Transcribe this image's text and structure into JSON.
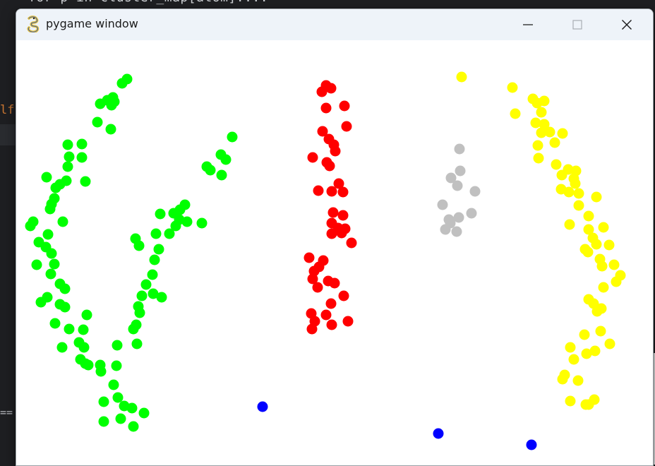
{
  "background": {
    "code_line_top": "for p in cluster_map[atom]:...",
    "gutter_text": "lf",
    "gutter_eq": "=="
  },
  "window": {
    "title": "pygame window",
    "icon": "pygame-snake-icon",
    "controls": {
      "minimize": "minimize-icon",
      "maximize": "maximize-icon",
      "close": "close-icon"
    }
  },
  "colors": {
    "titlebar": "#eef3f9",
    "canvas": "#ffffff",
    "green": "#00ff00",
    "red": "#ff0000",
    "yellow": "#ffff00",
    "gray": "#c0c0c0",
    "blue": "#0000ff"
  },
  "clusters": [
    {
      "name": "green",
      "color": "#00ff00",
      "points": [
        [
          180,
          112
        ],
        [
          173,
          118
        ],
        [
          160,
          138
        ],
        [
          152,
          142
        ],
        [
          142,
          147
        ],
        [
          158,
          149
        ],
        [
          162,
          144
        ],
        [
          138,
          173
        ],
        [
          157,
          183
        ],
        [
          116,
          204
        ],
        [
          96,
          205
        ],
        [
          98,
          222
        ],
        [
          116,
          223
        ],
        [
          96,
          236
        ],
        [
          329,
          194
        ],
        [
          313,
          219
        ],
        [
          320,
          226
        ],
        [
          293,
          236
        ],
        [
          298,
          241
        ],
        [
          314,
          248
        ],
        [
          66,
          251
        ],
        [
          94,
          256
        ],
        [
          85,
          261
        ],
        [
          79,
          266
        ],
        [
          121,
          257
        ],
        [
          77,
          281
        ],
        [
          73,
          289
        ],
        [
          71,
          296
        ],
        [
          262,
          290
        ],
        [
          255,
          297
        ],
        [
          246,
          302
        ],
        [
          227,
          303
        ],
        [
          254,
          311
        ],
        [
          265,
          314
        ],
        [
          249,
          320
        ],
        [
          286,
          316
        ],
        [
          47,
          314
        ],
        [
          43,
          320
        ],
        [
          89,
          314
        ],
        [
          68,
          332
        ],
        [
          240,
          331
        ],
        [
          221,
          331
        ],
        [
          55,
          343
        ],
        [
          65,
          350
        ],
        [
          192,
          338
        ],
        [
          197,
          348
        ],
        [
          225,
          353
        ],
        [
          73,
          359
        ],
        [
          52,
          375
        ],
        [
          219,
          368
        ],
        [
          77,
          374
        ],
        [
          72,
          388
        ],
        [
          216,
          389
        ],
        [
          85,
          402
        ],
        [
          92,
          409
        ],
        [
          207,
          403
        ],
        [
          67,
          421
        ],
        [
          58,
          428
        ],
        [
          217,
          416
        ],
        [
          229,
          421
        ],
        [
          201,
          419
        ],
        [
          85,
          431
        ],
        [
          92,
          435
        ],
        [
          196,
          434
        ],
        [
          198,
          443
        ],
        [
          123,
          446
        ],
        [
          193,
          460
        ],
        [
          189,
          466
        ],
        [
          78,
          458
        ],
        [
          98,
          466
        ],
        [
          118,
          467
        ],
        [
          112,
          485
        ],
        [
          119,
          492
        ],
        [
          88,
          492
        ],
        [
          194,
          487
        ],
        [
          166,
          489
        ],
        [
          114,
          509
        ],
        [
          121,
          515
        ],
        [
          125,
          517
        ],
        [
          142,
          517
        ],
        [
          143,
          526
        ],
        [
          165,
          518
        ],
        [
          161,
          545
        ],
        [
          167,
          563
        ],
        [
          147,
          569
        ],
        [
          176,
          575
        ],
        [
          187,
          578
        ],
        [
          204,
          585
        ],
        [
          171,
          593
        ],
        [
          147,
          597
        ],
        [
          189,
          604
        ]
      ]
    },
    {
      "name": "red",
      "color": "#ff0000",
      "points": [
        [
          462,
          121
        ],
        [
          469,
          125
        ],
        [
          456,
          130
        ],
        [
          462,
          153
        ],
        [
          488,
          150
        ],
        [
          491,
          179
        ],
        [
          457,
          186
        ],
        [
          466,
          197
        ],
        [
          473,
          205
        ],
        [
          475,
          214
        ],
        [
          443,
          223
        ],
        [
          463,
          230
        ],
        [
          467,
          235
        ],
        [
          480,
          260
        ],
        [
          451,
          270
        ],
        [
          470,
          271
        ],
        [
          486,
          272
        ],
        [
          472,
          301
        ],
        [
          486,
          305
        ],
        [
          470,
          316
        ],
        [
          479,
          323
        ],
        [
          489,
          324
        ],
        [
          470,
          331
        ],
        [
          484,
          330
        ],
        [
          498,
          344
        ],
        [
          438,
          365
        ],
        [
          458,
          369
        ],
        [
          452,
          378
        ],
        [
          445,
          384
        ],
        [
          443,
          395
        ],
        [
          465,
          398
        ],
        [
          474,
          401
        ],
        [
          450,
          407
        ],
        [
          487,
          419
        ],
        [
          469,
          430
        ],
        [
          441,
          444
        ],
        [
          462,
          446
        ],
        [
          446,
          455
        ],
        [
          442,
          466
        ],
        [
          470,
          460
        ],
        [
          493,
          455
        ]
      ]
    },
    {
      "name": "gray",
      "color": "#c0c0c0",
      "points": [
        [
          651,
          211
        ],
        [
          652,
          242
        ],
        [
          639,
          252
        ],
        [
          648,
          263
        ],
        [
          673,
          271
        ],
        [
          627,
          290
        ],
        [
          668,
          302
        ],
        [
          650,
          308
        ],
        [
          636,
          311
        ],
        [
          638,
          316
        ],
        [
          631,
          325
        ],
        [
          647,
          328
        ]
      ]
    },
    {
      "name": "yellow",
      "color": "#ffff00",
      "points": [
        [
          654,
          109
        ],
        [
          726,
          124
        ],
        [
          755,
          140
        ],
        [
          761,
          146
        ],
        [
          771,
          143
        ],
        [
          767,
          159
        ],
        [
          730,
          161
        ],
        [
          759,
          174
        ],
        [
          771,
          176
        ],
        [
          767,
          188
        ],
        [
          779,
          187
        ],
        [
          797,
          189
        ],
        [
          786,
          202
        ],
        [
          762,
          206
        ],
        [
          763,
          224
        ],
        [
          788,
          233
        ],
        [
          805,
          240
        ],
        [
          816,
          242
        ],
        [
          796,
          248
        ],
        [
          813,
          253
        ],
        [
          815,
          260
        ],
        [
          795,
          268
        ],
        [
          806,
          272
        ],
        [
          820,
          274
        ],
        [
          845,
          279
        ],
        [
          820,
          291
        ],
        [
          834,
          306
        ],
        [
          807,
          318
        ],
        [
          834,
          325
        ],
        [
          855,
          322
        ],
        [
          840,
          337
        ],
        [
          845,
          346
        ],
        [
          829,
          353
        ],
        [
          863,
          347
        ],
        [
          833,
          357
        ],
        [
          850,
          367
        ],
        [
          870,
          375
        ],
        [
          853,
          377
        ],
        [
          879,
          390
        ],
        [
          873,
          399
        ],
        [
          855,
          407
        ],
        [
          834,
          424
        ],
        [
          841,
          430
        ],
        [
          852,
          437
        ],
        [
          846,
          441
        ],
        [
          851,
          469
        ],
        [
          828,
          474
        ],
        [
          864,
          487
        ],
        [
          808,
          492
        ],
        [
          843,
          497
        ],
        [
          831,
          501
        ],
        [
          813,
          509
        ],
        [
          800,
          531
        ],
        [
          797,
          537
        ],
        [
          819,
          539
        ],
        [
          842,
          566
        ],
        [
          834,
          573
        ],
        [
          808,
          568
        ],
        [
          830,
          573
        ]
      ]
    },
    {
      "name": "blue",
      "color": "#0000ff",
      "points": [
        [
          372,
          576
        ],
        [
          621,
          614
        ],
        [
          753,
          630
        ]
      ]
    }
  ]
}
